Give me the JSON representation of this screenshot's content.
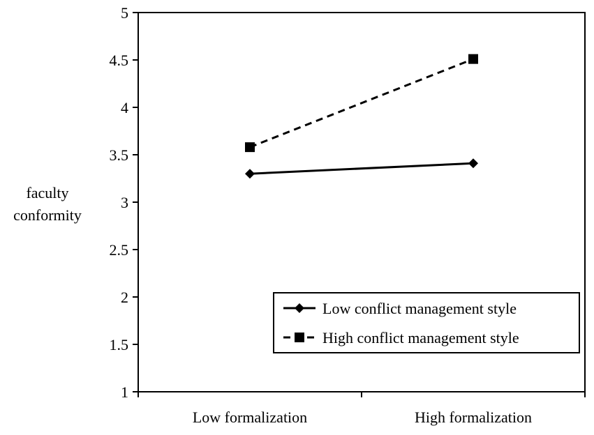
{
  "chart_data": {
    "type": "line",
    "title": "",
    "ylabel_lines": [
      "faculty",
      "conformity"
    ],
    "xlabel": "",
    "categories": [
      "Low formalization",
      "High formalization"
    ],
    "ylim": [
      1,
      5
    ],
    "yticks": [
      "1",
      "1.5",
      "2",
      "2.5",
      "3",
      "3.5",
      "4",
      "4.5",
      "5"
    ],
    "grid": false,
    "legend_position": "bottom-right",
    "series": [
      {
        "name": "Low conflict management style",
        "values": [
          3.3,
          3.41
        ],
        "line_style": "solid",
        "marker": "diamond",
        "color": "#000000"
      },
      {
        "name": "High conflict management style",
        "values": [
          3.58,
          4.51
        ],
        "line_style": "dashed",
        "marker": "square",
        "color": "#000000"
      }
    ]
  }
}
